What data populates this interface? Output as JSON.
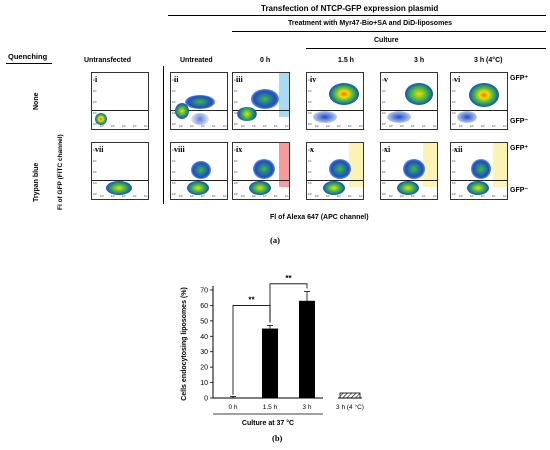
{
  "header": {
    "transfection": "Transfection of NTCP-GFP expression plasmid",
    "treatment": "Treatment with Myr47-Bio+SA and DiD-liposomes",
    "culture": "Culture"
  },
  "quenching": {
    "label": "Quenching",
    "none": "None",
    "trypan": "Trypan blue"
  },
  "columns": {
    "untransfected": "Untransfected",
    "untreated": "Untreated",
    "t0": "0 h",
    "t15": "1.5 h",
    "t3": "3 h",
    "t3c": "3 h (4°C)"
  },
  "panels": {
    "row1": [
      "i",
      "ii",
      "iii",
      "iv",
      "v",
      "vi"
    ],
    "row2": [
      "vii",
      "viii",
      "ix",
      "x",
      "xi",
      "xii"
    ]
  },
  "axis_labels": {
    "y": "Fl of GFP (FITC channel)",
    "x": "Fl of Alexa 647 (APC channel)",
    "gfp_pos": "GFP⁺",
    "gfp_neg": "GFP⁻"
  },
  "tick_labels": [
    "10⁰",
    "10²",
    "10³",
    "10⁴",
    "10⁵"
  ],
  "caption_a": "(a)",
  "caption_b": "(b)",
  "chart_data": {
    "type": "bar",
    "categories": [
      "0 h",
      "1.5 h",
      "3 h",
      "3 h (4 °C)"
    ],
    "values": [
      0,
      45,
      63,
      0
    ],
    "errors": [
      1,
      2,
      6,
      0
    ],
    "hatched": [
      false,
      false,
      false,
      true
    ],
    "ylabel": "Cells endocytosing liposomes (%)",
    "xlabel": "Culture at 37 °C",
    "ylim": [
      0,
      70
    ],
    "yticks": [
      0,
      10,
      20,
      30,
      40,
      50,
      60,
      70
    ],
    "significance": [
      {
        "pair": [
          "0 h",
          "1.5 h"
        ],
        "label": "**"
      },
      {
        "pair": [
          "1.5 h",
          "3 h"
        ],
        "label": "**"
      }
    ]
  }
}
